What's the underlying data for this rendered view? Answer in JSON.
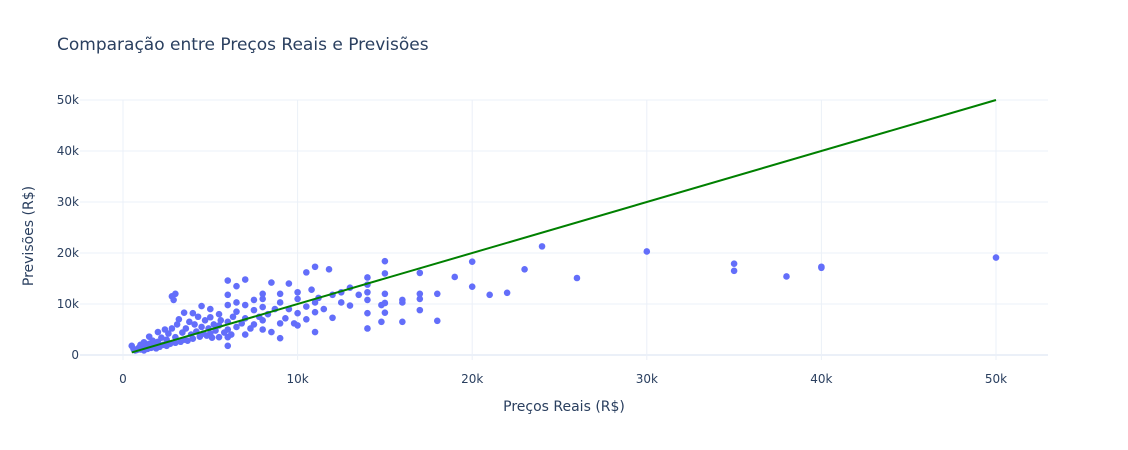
{
  "chart_data": {
    "type": "scatter",
    "title": "Comparação entre Preços Reais e Previsões",
    "xlabel": "Preços Reais (R$)",
    "ylabel": "Previsões (R$)",
    "xlim": [
      -1500,
      53000
    ],
    "ylim": [
      -1000,
      50000
    ],
    "x_ticks": [
      0,
      10000,
      20000,
      30000,
      40000,
      50000
    ],
    "x_tick_labels": [
      "0",
      "10k",
      "20k",
      "30k",
      "40k",
      "50k"
    ],
    "y_ticks": [
      0,
      10000,
      20000,
      30000,
      40000,
      50000
    ],
    "y_tick_labels": [
      "0",
      "10k",
      "20k",
      "30k",
      "40k",
      "50k"
    ],
    "grid": true,
    "series": [
      {
        "mode": "markers",
        "color": "#636efa",
        "points": [
          [
            500,
            1800
          ],
          [
            600,
            1200
          ],
          [
            700,
            900
          ],
          [
            800,
            1000
          ],
          [
            900,
            1400
          ],
          [
            1000,
            1100
          ],
          [
            1000,
            2000
          ],
          [
            1100,
            1500
          ],
          [
            1200,
            900
          ],
          [
            1200,
            2500
          ],
          [
            1300,
            1700
          ],
          [
            1400,
            1200
          ],
          [
            1500,
            2200
          ],
          [
            1500,
            3600
          ],
          [
            1600,
            1400
          ],
          [
            1700,
            2800
          ],
          [
            1800,
            1900
          ],
          [
            1900,
            1300
          ],
          [
            2000,
            2600
          ],
          [
            2000,
            4500
          ],
          [
            2100,
            1600
          ],
          [
            2200,
            3400
          ],
          [
            2300,
            2000
          ],
          [
            2400,
            5000
          ],
          [
            2500,
            1800
          ],
          [
            2500,
            3000
          ],
          [
            2600,
            4200
          ],
          [
            2700,
            2200
          ],
          [
            2800,
            5200
          ],
          [
            2800,
            11500
          ],
          [
            2900,
            10800
          ],
          [
            3000,
            12000
          ],
          [
            3000,
            2400
          ],
          [
            3000,
            3500
          ],
          [
            3100,
            6000
          ],
          [
            3200,
            7000
          ],
          [
            3300,
            2600
          ],
          [
            3400,
            4400
          ],
          [
            3500,
            3000
          ],
          [
            3500,
            8300
          ],
          [
            3600,
            5200
          ],
          [
            3700,
            2800
          ],
          [
            3800,
            6500
          ],
          [
            3900,
            4000
          ],
          [
            4000,
            3200
          ],
          [
            4000,
            8200
          ],
          [
            4100,
            6000
          ],
          [
            4200,
            4600
          ],
          [
            4300,
            7500
          ],
          [
            4400,
            3600
          ],
          [
            4500,
            5500
          ],
          [
            4500,
            9600
          ],
          [
            4600,
            4200
          ],
          [
            4700,
            6800
          ],
          [
            4800,
            3800
          ],
          [
            4900,
            5200
          ],
          [
            5000,
            4200
          ],
          [
            5000,
            7400
          ],
          [
            5000,
            9000
          ],
          [
            5100,
            3400
          ],
          [
            5200,
            6000
          ],
          [
            5300,
            4800
          ],
          [
            5500,
            3500
          ],
          [
            5500,
            5800
          ],
          [
            5500,
            8000
          ],
          [
            5600,
            6800
          ],
          [
            5800,
            4400
          ],
          [
            6000,
            1800
          ],
          [
            6000,
            3500
          ],
          [
            6000,
            5000
          ],
          [
            6000,
            6500
          ],
          [
            6000,
            9800
          ],
          [
            6000,
            11800
          ],
          [
            6000,
            14600
          ],
          [
            6200,
            4000
          ],
          [
            6300,
            7500
          ],
          [
            6500,
            5500
          ],
          [
            6500,
            8500
          ],
          [
            6500,
            10300
          ],
          [
            6500,
            13500
          ],
          [
            6800,
            6200
          ],
          [
            7000,
            4000
          ],
          [
            7000,
            7200
          ],
          [
            7000,
            9800
          ],
          [
            7000,
            14800
          ],
          [
            7300,
            5200
          ],
          [
            7500,
            6000
          ],
          [
            7500,
            8800
          ],
          [
            7500,
            10800
          ],
          [
            7800,
            7500
          ],
          [
            8000,
            5000
          ],
          [
            8000,
            6800
          ],
          [
            8000,
            9400
          ],
          [
            8000,
            11000
          ],
          [
            8000,
            12000
          ],
          [
            8300,
            8000
          ],
          [
            8500,
            4500
          ],
          [
            8500,
            14200
          ],
          [
            8700,
            9000
          ],
          [
            9000,
            3300
          ],
          [
            9000,
            6200
          ],
          [
            9000,
            10300
          ],
          [
            9000,
            12000
          ],
          [
            9300,
            7200
          ],
          [
            9500,
            9000
          ],
          [
            9500,
            14000
          ],
          [
            9800,
            6200
          ],
          [
            10000,
            5800
          ],
          [
            10000,
            8200
          ],
          [
            10000,
            11000
          ],
          [
            10000,
            12300
          ],
          [
            10500,
            7000
          ],
          [
            10500,
            9500
          ],
          [
            10500,
            16200
          ],
          [
            10800,
            12800
          ],
          [
            11000,
            4500
          ],
          [
            11000,
            8400
          ],
          [
            11000,
            10300
          ],
          [
            11000,
            17300
          ],
          [
            11200,
            11200
          ],
          [
            11500,
            9000
          ],
          [
            11800,
            16800
          ],
          [
            12000,
            7300
          ],
          [
            12000,
            11800
          ],
          [
            12500,
            10300
          ],
          [
            12500,
            12300
          ],
          [
            13000,
            9700
          ],
          [
            13000,
            13200
          ],
          [
            13500,
            11800
          ],
          [
            14000,
            5200
          ],
          [
            14000,
            8200
          ],
          [
            14000,
            10800
          ],
          [
            14000,
            12300
          ],
          [
            14000,
            13800
          ],
          [
            14000,
            15200
          ],
          [
            14800,
            6500
          ],
          [
            14800,
            9800
          ],
          [
            15000,
            8300
          ],
          [
            15000,
            10200
          ],
          [
            15000,
            12000
          ],
          [
            15000,
            16000
          ],
          [
            15000,
            18400
          ],
          [
            16000,
            6500
          ],
          [
            16000,
            10300
          ],
          [
            16000,
            10800
          ],
          [
            17000,
            8800
          ],
          [
            17000,
            11000
          ],
          [
            17000,
            12000
          ],
          [
            17000,
            16100
          ],
          [
            18000,
            6700
          ],
          [
            18000,
            12000
          ],
          [
            19000,
            15300
          ],
          [
            20000,
            13400
          ],
          [
            20000,
            18300
          ],
          [
            21000,
            11800
          ],
          [
            22000,
            12200
          ],
          [
            23000,
            16800
          ],
          [
            24000,
            21300
          ],
          [
            26000,
            15100
          ],
          [
            30000,
            20300
          ],
          [
            35000,
            16500
          ],
          [
            35000,
            17900
          ],
          [
            38000,
            15400
          ],
          [
            40000,
            17100
          ],
          [
            40000,
            17300
          ],
          [
            50000,
            19100
          ]
        ]
      },
      {
        "mode": "lines",
        "color": "#008000",
        "x": [
          500,
          50000
        ],
        "y": [
          500,
          50000
        ]
      }
    ]
  }
}
